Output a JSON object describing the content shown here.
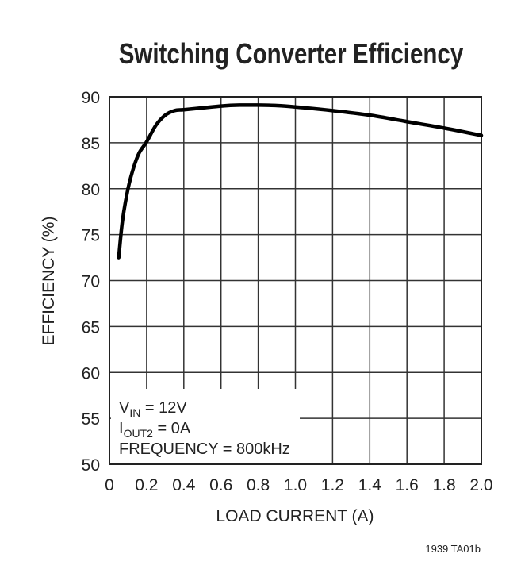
{
  "chart_data": {
    "type": "line",
    "title": "Switching Converter Efficiency",
    "xlabel": "LOAD CURRENT (A)",
    "ylabel": "EFFICIENCY (%)",
    "xlim": [
      0,
      2.0
    ],
    "ylim": [
      50,
      90
    ],
    "xticks": [
      "0",
      "0.2",
      "0.4",
      "0.6",
      "0.8",
      "1.0",
      "1.2",
      "1.4",
      "1.6",
      "1.8",
      "2.0"
    ],
    "yticks": [
      "50",
      "55",
      "60",
      "65",
      "70",
      "75",
      "80",
      "85",
      "90"
    ],
    "grid": true,
    "series": [
      {
        "x": [
          0.05,
          0.07,
          0.1,
          0.13,
          0.16,
          0.2,
          0.25,
          0.3,
          0.35,
          0.4,
          0.5,
          0.6,
          0.7,
          0.8,
          0.9,
          1.0,
          1.2,
          1.4,
          1.6,
          1.8,
          2.0
        ],
        "y": [
          72.5,
          76.5,
          80.0,
          82.3,
          83.9,
          85.1,
          86.9,
          88.0,
          88.5,
          88.6,
          88.8,
          89.0,
          89.1,
          89.1,
          89.05,
          88.9,
          88.5,
          88.0,
          87.3,
          86.6,
          85.8
        ],
        "color": "#000000"
      }
    ],
    "annotations": {
      "vin": {
        "main": "V",
        "sub": "IN",
        "rest": " = 12V"
      },
      "iout": {
        "main": "I",
        "sub": "OUT2",
        "rest": " = 0A"
      },
      "freq": "FREQUENCY = 800kHz"
    },
    "figure_id": "1939 TA01b"
  }
}
